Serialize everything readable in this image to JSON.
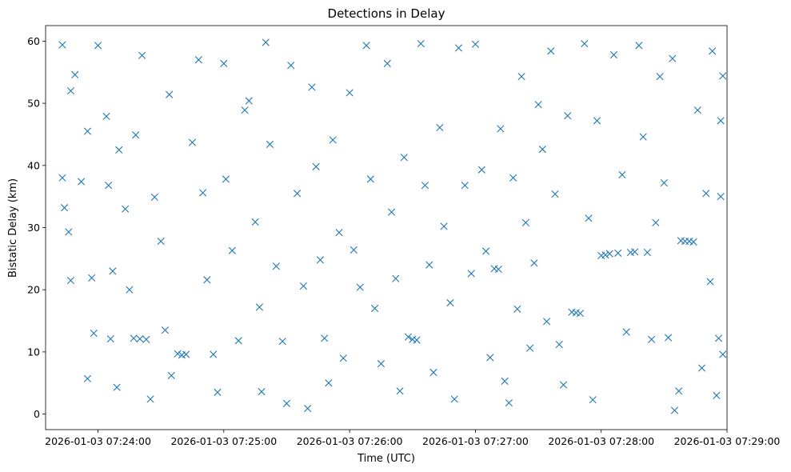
{
  "chart_data": {
    "type": "scatter",
    "title": "Detections in Delay",
    "xlabel": "Time (UTC)",
    "ylabel": "Bistatic Delay (km)",
    "x_axis": {
      "type": "time",
      "domain": [
        "2026-01-03 07:23:35",
        "2026-01-03 07:29:00"
      ],
      "ticks": [
        "2026-01-03 07:24:00",
        "2026-01-03 07:25:00",
        "2026-01-03 07:26:00",
        "2026-01-03 07:27:00",
        "2026-01-03 07:28:00",
        "2026-01-03 07:29:00"
      ]
    },
    "y_axis": {
      "domain": [
        -2.5,
        62.5
      ],
      "ticks": [
        0,
        10,
        20,
        30,
        40,
        50,
        60
      ]
    },
    "grid": false,
    "legend": "none",
    "marker": "x",
    "color": "#1f77b4",
    "series": [
      {
        "points": [
          [
            "2026-01-03 07:23:43",
            59.4
          ],
          [
            "2026-01-03 07:23:47",
            52.0
          ],
          [
            "2026-01-03 07:23:49",
            54.6
          ],
          [
            "2026-01-03 07:23:55",
            45.5
          ],
          [
            "2026-01-03 07:23:43",
            38.0
          ],
          [
            "2026-01-03 07:23:44",
            33.2
          ],
          [
            "2026-01-03 07:23:46",
            29.3
          ],
          [
            "2026-01-03 07:23:47",
            21.5
          ],
          [
            "2026-01-03 07:23:52",
            37.4
          ],
          [
            "2026-01-03 07:23:57",
            21.9
          ],
          [
            "2026-01-03 07:23:58",
            13.0
          ],
          [
            "2026-01-03 07:23:55",
            5.7
          ],
          [
            "2026-01-03 07:24:00",
            59.3
          ],
          [
            "2026-01-03 07:24:04",
            47.9
          ],
          [
            "2026-01-03 07:24:05",
            36.8
          ],
          [
            "2026-01-03 07:24:07",
            23.0
          ],
          [
            "2026-01-03 07:24:06",
            12.1
          ],
          [
            "2026-01-03 07:24:09",
            4.3
          ],
          [
            "2026-01-03 07:24:10",
            42.5
          ],
          [
            "2026-01-03 07:24:13",
            33.0
          ],
          [
            "2026-01-03 07:24:15",
            20.0
          ],
          [
            "2026-01-03 07:24:17",
            12.2
          ],
          [
            "2026-01-03 07:24:20",
            12.1
          ],
          [
            "2026-01-03 07:24:23",
            12.0
          ],
          [
            "2026-01-03 07:24:25",
            2.4
          ],
          [
            "2026-01-03 07:24:18",
            44.9
          ],
          [
            "2026-01-03 07:24:21",
            57.7
          ],
          [
            "2026-01-03 07:24:27",
            34.9
          ],
          [
            "2026-01-03 07:24:30",
            27.8
          ],
          [
            "2026-01-03 07:24:32",
            13.5
          ],
          [
            "2026-01-03 07:24:35",
            6.2
          ],
          [
            "2026-01-03 07:24:34",
            51.4
          ],
          [
            "2026-01-03 07:24:38",
            9.7
          ],
          [
            "2026-01-03 07:24:40",
            9.5
          ],
          [
            "2026-01-03 07:24:42",
            9.6
          ],
          [
            "2026-01-03 07:24:45",
            43.7
          ],
          [
            "2026-01-03 07:24:48",
            57.0
          ],
          [
            "2026-01-03 07:24:50",
            35.6
          ],
          [
            "2026-01-03 07:24:52",
            21.6
          ],
          [
            "2026-01-03 07:24:55",
            9.6
          ],
          [
            "2026-01-03 07:24:57",
            3.5
          ],
          [
            "2026-01-03 07:25:00",
            56.4
          ],
          [
            "2026-01-03 07:25:01",
            37.8
          ],
          [
            "2026-01-03 07:25:04",
            26.3
          ],
          [
            "2026-01-03 07:25:07",
            11.8
          ],
          [
            "2026-01-03 07:25:10",
            48.9
          ],
          [
            "2026-01-03 07:25:12",
            50.4
          ],
          [
            "2026-01-03 07:25:15",
            30.9
          ],
          [
            "2026-01-03 07:25:17",
            17.2
          ],
          [
            "2026-01-03 07:25:18",
            3.6
          ],
          [
            "2026-01-03 07:25:20",
            59.8
          ],
          [
            "2026-01-03 07:25:22",
            43.4
          ],
          [
            "2026-01-03 07:25:25",
            23.8
          ],
          [
            "2026-01-03 07:25:28",
            11.7
          ],
          [
            "2026-01-03 07:25:30",
            1.7
          ],
          [
            "2026-01-03 07:25:32",
            56.1
          ],
          [
            "2026-01-03 07:25:35",
            35.5
          ],
          [
            "2026-01-03 07:25:38",
            20.6
          ],
          [
            "2026-01-03 07:25:40",
            0.9
          ],
          [
            "2026-01-03 07:25:42",
            52.6
          ],
          [
            "2026-01-03 07:25:44",
            39.8
          ],
          [
            "2026-01-03 07:25:46",
            24.8
          ],
          [
            "2026-01-03 07:25:48",
            12.2
          ],
          [
            "2026-01-03 07:25:50",
            5.0
          ],
          [
            "2026-01-03 07:25:52",
            44.1
          ],
          [
            "2026-01-03 07:25:55",
            29.2
          ],
          [
            "2026-01-03 07:25:57",
            9.0
          ],
          [
            "2026-01-03 07:26:00",
            51.7
          ],
          [
            "2026-01-03 07:26:02",
            26.4
          ],
          [
            "2026-01-03 07:26:05",
            20.4
          ],
          [
            "2026-01-03 07:26:08",
            59.3
          ],
          [
            "2026-01-03 07:26:10",
            37.8
          ],
          [
            "2026-01-03 07:26:12",
            17.0
          ],
          [
            "2026-01-03 07:26:15",
            8.1
          ],
          [
            "2026-01-03 07:26:18",
            56.4
          ],
          [
            "2026-01-03 07:26:20",
            32.5
          ],
          [
            "2026-01-03 07:26:22",
            21.8
          ],
          [
            "2026-01-03 07:26:24",
            3.7
          ],
          [
            "2026-01-03 07:26:26",
            41.3
          ],
          [
            "2026-01-03 07:26:28",
            12.4
          ],
          [
            "2026-01-03 07:26:30",
            12.0
          ],
          [
            "2026-01-03 07:26:32",
            11.9
          ],
          [
            "2026-01-03 07:26:34",
            59.6
          ],
          [
            "2026-01-03 07:26:36",
            36.8
          ],
          [
            "2026-01-03 07:26:38",
            24.0
          ],
          [
            "2026-01-03 07:26:40",
            6.7
          ],
          [
            "2026-01-03 07:26:43",
            46.1
          ],
          [
            "2026-01-03 07:26:45",
            30.2
          ],
          [
            "2026-01-03 07:26:48",
            17.9
          ],
          [
            "2026-01-03 07:26:50",
            2.4
          ],
          [
            "2026-01-03 07:26:52",
            58.9
          ],
          [
            "2026-01-03 07:26:55",
            36.8
          ],
          [
            "2026-01-03 07:26:58",
            22.6
          ],
          [
            "2026-01-03 07:27:00",
            59.5
          ],
          [
            "2026-01-03 07:27:03",
            39.3
          ],
          [
            "2026-01-03 07:27:05",
            26.2
          ],
          [
            "2026-01-03 07:27:07",
            9.1
          ],
          [
            "2026-01-03 07:27:09",
            23.4
          ],
          [
            "2026-01-03 07:27:11",
            23.3
          ],
          [
            "2026-01-03 07:27:12",
            45.9
          ],
          [
            "2026-01-03 07:27:14",
            5.3
          ],
          [
            "2026-01-03 07:27:16",
            1.8
          ],
          [
            "2026-01-03 07:27:18",
            38.0
          ],
          [
            "2026-01-03 07:27:20",
            16.9
          ],
          [
            "2026-01-03 07:27:22",
            54.3
          ],
          [
            "2026-01-03 07:27:24",
            30.8
          ],
          [
            "2026-01-03 07:27:26",
            10.6
          ],
          [
            "2026-01-03 07:27:28",
            24.3
          ],
          [
            "2026-01-03 07:27:30",
            49.8
          ],
          [
            "2026-01-03 07:27:32",
            42.6
          ],
          [
            "2026-01-03 07:27:34",
            14.9
          ],
          [
            "2026-01-03 07:27:36",
            58.4
          ],
          [
            "2026-01-03 07:27:38",
            35.4
          ],
          [
            "2026-01-03 07:27:40",
            11.2
          ],
          [
            "2026-01-03 07:27:42",
            4.7
          ],
          [
            "2026-01-03 07:27:44",
            48.0
          ],
          [
            "2026-01-03 07:27:46",
            16.4
          ],
          [
            "2026-01-03 07:27:48",
            16.3
          ],
          [
            "2026-01-03 07:27:50",
            16.2
          ],
          [
            "2026-01-03 07:27:52",
            59.6
          ],
          [
            "2026-01-03 07:27:54",
            31.5
          ],
          [
            "2026-01-03 07:27:56",
            2.3
          ],
          [
            "2026-01-03 07:27:58",
            47.2
          ],
          [
            "2026-01-03 07:28:00",
            25.5
          ],
          [
            "2026-01-03 07:28:02",
            25.6
          ],
          [
            "2026-01-03 07:28:04",
            25.8
          ],
          [
            "2026-01-03 07:28:06",
            57.8
          ],
          [
            "2026-01-03 07:28:08",
            25.9
          ],
          [
            "2026-01-03 07:28:10",
            38.5
          ],
          [
            "2026-01-03 07:28:12",
            13.2
          ],
          [
            "2026-01-03 07:28:14",
            26.0
          ],
          [
            "2026-01-03 07:28:16",
            26.1
          ],
          [
            "2026-01-03 07:28:18",
            59.3
          ],
          [
            "2026-01-03 07:28:20",
            44.6
          ],
          [
            "2026-01-03 07:28:22",
            26.0
          ],
          [
            "2026-01-03 07:28:24",
            12.0
          ],
          [
            "2026-01-03 07:28:26",
            30.8
          ],
          [
            "2026-01-03 07:28:28",
            54.3
          ],
          [
            "2026-01-03 07:28:30",
            37.2
          ],
          [
            "2026-01-03 07:28:32",
            12.3
          ],
          [
            "2026-01-03 07:28:34",
            57.2
          ],
          [
            "2026-01-03 07:28:35",
            0.6
          ],
          [
            "2026-01-03 07:28:37",
            3.7
          ],
          [
            "2026-01-03 07:28:38",
            27.9
          ],
          [
            "2026-01-03 07:28:40",
            27.8
          ],
          [
            "2026-01-03 07:28:42",
            27.8
          ],
          [
            "2026-01-03 07:28:44",
            27.7
          ],
          [
            "2026-01-03 07:28:46",
            48.9
          ],
          [
            "2026-01-03 07:28:48",
            7.4
          ],
          [
            "2026-01-03 07:28:50",
            35.5
          ],
          [
            "2026-01-03 07:28:52",
            21.3
          ],
          [
            "2026-01-03 07:28:53",
            58.4
          ],
          [
            "2026-01-03 07:28:55",
            3.0
          ],
          [
            "2026-01-03 07:28:56",
            12.2
          ],
          [
            "2026-01-03 07:28:57",
            35.0
          ],
          [
            "2026-01-03 07:28:57",
            47.2
          ],
          [
            "2026-01-03 07:28:58",
            54.4
          ],
          [
            "2026-01-03 07:28:58",
            9.6
          ]
        ]
      }
    ]
  }
}
